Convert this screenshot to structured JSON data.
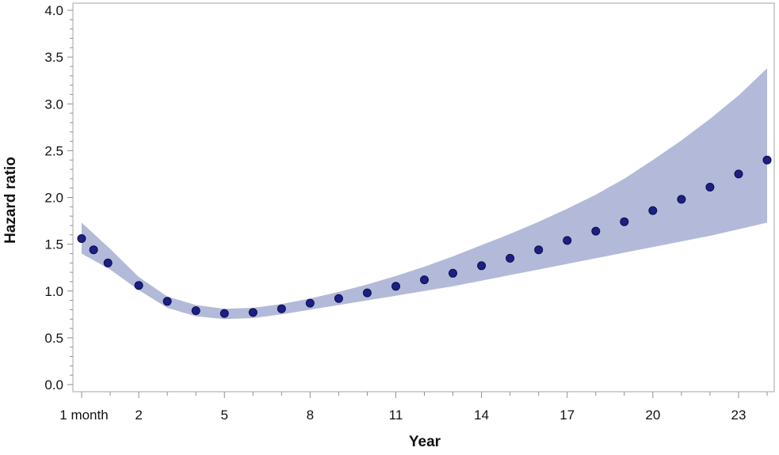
{
  "chart_data": {
    "type": "scatter",
    "title": "",
    "xlabel": "Year",
    "ylabel": "Hazard ratio",
    "xlim": [
      0.0,
      24.2
    ],
    "ylim": [
      0.0,
      4.0
    ],
    "grid": false,
    "x_ticks": [
      {
        "value": 0.083,
        "label": "1 month"
      },
      {
        "value": 2,
        "label": "2"
      },
      {
        "value": 5,
        "label": "5"
      },
      {
        "value": 8,
        "label": "8"
      },
      {
        "value": 11,
        "label": "11"
      },
      {
        "value": 14,
        "label": "14"
      },
      {
        "value": 17,
        "label": "17"
      },
      {
        "value": 20,
        "label": "20"
      },
      {
        "value": 23,
        "label": "23"
      }
    ],
    "y_ticks": [
      {
        "value": 0.0,
        "label": "0.0"
      },
      {
        "value": 0.5,
        "label": "0.5"
      },
      {
        "value": 1.0,
        "label": "1.0"
      },
      {
        "value": 1.5,
        "label": "1.5"
      },
      {
        "value": 2.0,
        "label": "2.0"
      },
      {
        "value": 2.5,
        "label": "2.5"
      },
      {
        "value": 3.0,
        "label": "3.0"
      },
      {
        "value": 3.5,
        "label": "3.5"
      },
      {
        "value": 4.0,
        "label": "4.0"
      }
    ],
    "series": [
      {
        "points": [
          {
            "x": 0.0,
            "y": 1.56
          },
          {
            "x": 0.42,
            "y": 1.44
          },
          {
            "x": 0.92,
            "y": 1.3
          },
          {
            "x": 2,
            "y": 1.06
          },
          {
            "x": 3,
            "y": 0.89
          },
          {
            "x": 4,
            "y": 0.79
          },
          {
            "x": 5,
            "y": 0.76
          },
          {
            "x": 6,
            "y": 0.77
          },
          {
            "x": 7,
            "y": 0.81
          },
          {
            "x": 8,
            "y": 0.87
          },
          {
            "x": 9,
            "y": 0.92
          },
          {
            "x": 10,
            "y": 0.98
          },
          {
            "x": 11,
            "y": 1.05
          },
          {
            "x": 12,
            "y": 1.12
          },
          {
            "x": 13,
            "y": 1.19
          },
          {
            "x": 14,
            "y": 1.27
          },
          {
            "x": 15,
            "y": 1.35
          },
          {
            "x": 16,
            "y": 1.44
          },
          {
            "x": 17,
            "y": 1.54
          },
          {
            "x": 18,
            "y": 1.64
          },
          {
            "x": 19,
            "y": 1.74
          },
          {
            "x": 20,
            "y": 1.86
          },
          {
            "x": 21,
            "y": 1.98
          },
          {
            "x": 22,
            "y": 2.11
          },
          {
            "x": 23,
            "y": 2.25
          },
          {
            "x": 24,
            "y": 2.4
          }
        ],
        "ci_band": {
          "x": [
            0.0,
            1,
            2,
            3,
            4,
            5,
            6,
            7,
            8,
            9,
            10,
            11,
            12,
            13,
            14,
            15,
            16,
            17,
            18,
            19,
            20,
            21,
            22,
            23,
            24
          ],
          "upper": [
            1.73,
            1.45,
            1.15,
            0.94,
            0.85,
            0.81,
            0.82,
            0.86,
            0.92,
            0.99,
            1.07,
            1.16,
            1.26,
            1.37,
            1.49,
            1.61,
            1.74,
            1.88,
            2.03,
            2.2,
            2.4,
            2.61,
            2.84,
            3.09,
            3.38
          ],
          "lower": [
            1.4,
            1.23,
            1.01,
            0.82,
            0.73,
            0.7,
            0.71,
            0.75,
            0.8,
            0.85,
            0.9,
            0.95,
            1.0,
            1.05,
            1.11,
            1.17,
            1.23,
            1.29,
            1.35,
            1.41,
            1.47,
            1.53,
            1.59,
            1.66,
            1.73
          ]
        }
      }
    ],
    "colors": {
      "marker_fill": "#1c1f86",
      "marker_stroke": "#0c0e45",
      "band_fill": "#b3bad9",
      "axis": "#a8a8a8",
      "tick": "#8f8f8f",
      "frame": "#b5b5b5"
    }
  }
}
